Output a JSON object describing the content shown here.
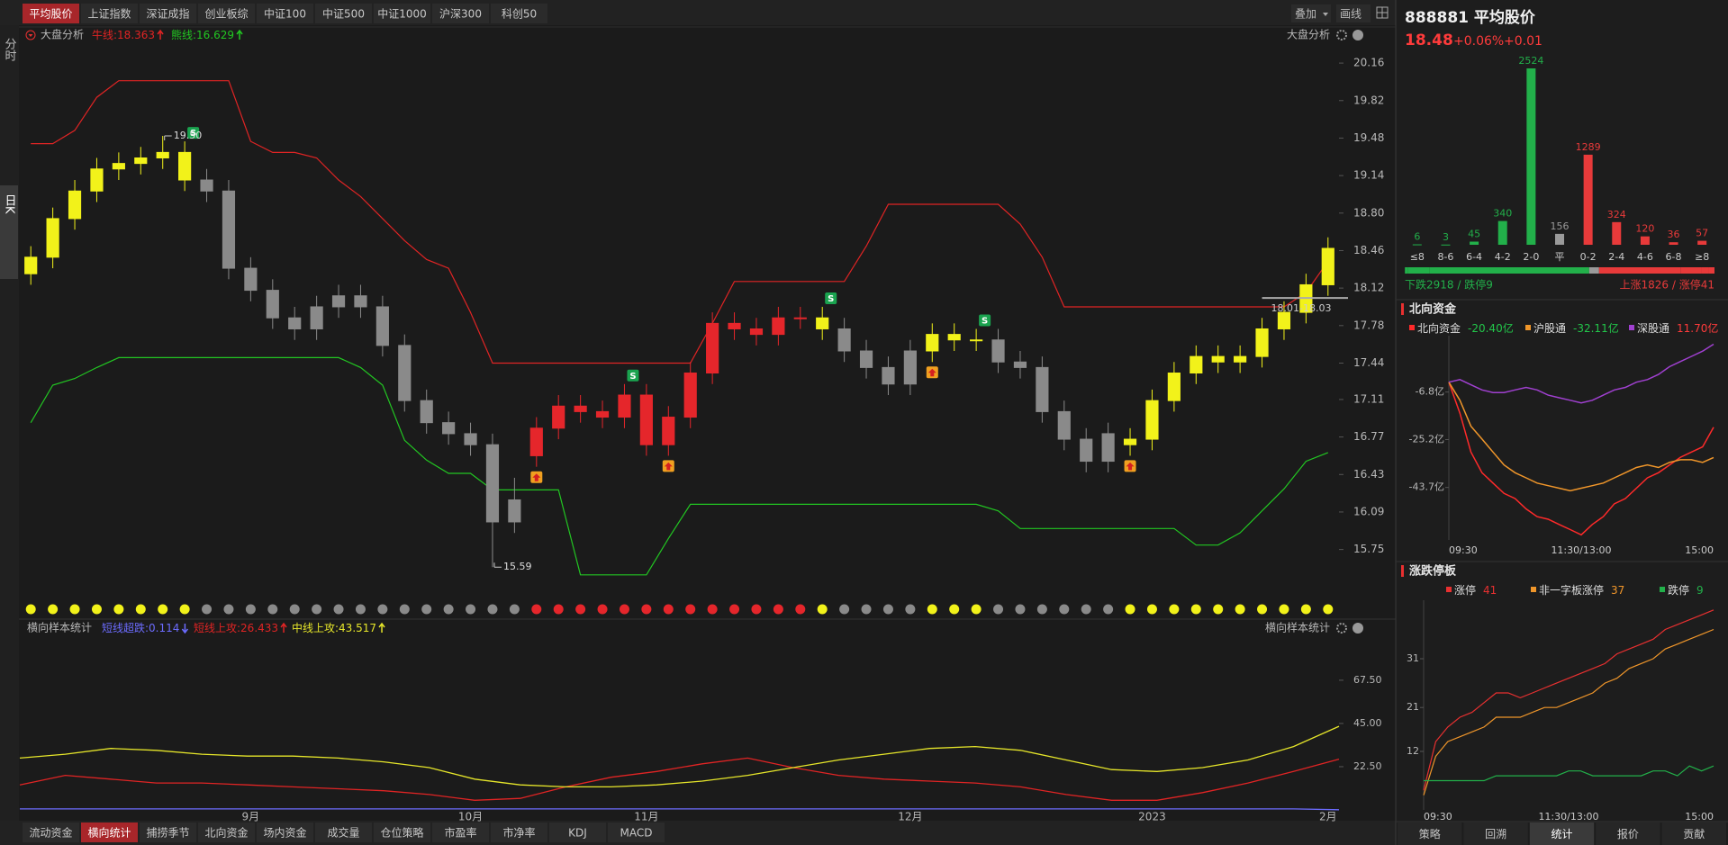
{
  "ui": {
    "top_tabs": [
      "平均股价",
      "上证指数",
      "深证成指",
      "创业板综",
      "中证100",
      "中证500",
      "中证1000",
      "沪深300",
      "科创50"
    ],
    "top_tabs_active": 0,
    "top_right": [
      "叠加",
      "画线"
    ],
    "side_tabs": [
      "分时",
      "日K"
    ],
    "side_tabs_active": 1,
    "main_title": "大盘分析",
    "main_title_right": "大盘分析",
    "sub_title": "横向样本统计",
    "sub_title_right": "横向样本统计",
    "bottom_tabs": [
      "流动资金",
      "横向统计",
      "捕捞季节",
      "北向资金",
      "场内资金",
      "成交量",
      "仓位策略",
      "市盈率",
      "市净率",
      "KDJ",
      "MACD"
    ],
    "bottom_tabs_active": 1,
    "right_tabs": [
      "策略",
      "回溯",
      "统计",
      "报价",
      "贡献"
    ],
    "right_tabs_active": 2,
    "quote_title": "888881 平均股价",
    "quote_price": 18.48,
    "quote_change_pct": "+0.06%",
    "quote_change": "+0.01",
    "breadth_down": "下跌2918 / 跌停9",
    "breadth_up": "上涨1826 / 涨停41",
    "north_title": "北向资金",
    "limit_title": "涨跌停板"
  },
  "chart_data": [
    {
      "type": "candlestick",
      "categories": [
        null,
        null,
        null,
        null,
        null,
        null,
        null,
        null,
        null,
        null,
        "9月",
        null,
        null,
        null,
        null,
        null,
        null,
        null,
        null,
        null,
        "10月",
        null,
        null,
        null,
        null,
        null,
        null,
        null,
        "11月",
        null,
        null,
        null,
        null,
        null,
        null,
        null,
        null,
        null,
        null,
        null,
        "12月",
        null,
        null,
        null,
        null,
        null,
        null,
        null,
        null,
        null,
        null,
        "2023",
        null,
        null,
        null,
        null,
        null,
        null,
        null,
        "2月"
      ],
      "open": [
        18.25,
        18.4,
        18.75,
        19.0,
        19.2,
        19.25,
        19.3,
        19.35,
        19.1,
        19.0,
        18.3,
        18.1,
        17.85,
        17.75,
        17.95,
        18.05,
        17.95,
        17.6,
        17.1,
        16.9,
        16.8,
        16.7,
        16.0,
        16.6,
        16.85,
        17.05,
        17.0,
        16.95,
        17.15,
        16.7,
        16.95,
        17.35,
        17.8,
        17.75,
        17.7,
        17.85,
        17.85,
        17.75,
        17.55,
        17.4,
        17.25,
        17.55,
        17.7,
        17.65,
        17.65,
        17.45,
        17.4,
        17.0,
        16.75,
        16.55,
        16.7,
        16.75,
        17.1,
        17.35,
        17.5,
        17.45,
        17.5,
        17.75,
        17.9,
        18.15
      ],
      "high": [
        18.5,
        18.85,
        19.1,
        19.3,
        19.35,
        19.4,
        19.5,
        19.45,
        19.2,
        19.1,
        18.4,
        18.2,
        17.95,
        18.05,
        18.15,
        18.15,
        18.05,
        17.7,
        17.2,
        17.0,
        16.9,
        16.8,
        16.4,
        16.95,
        17.15,
        17.15,
        17.1,
        17.25,
        17.25,
        17.05,
        17.45,
        17.9,
        17.9,
        17.85,
        17.95,
        17.95,
        17.95,
        17.85,
        17.65,
        17.5,
        17.65,
        17.8,
        17.8,
        17.75,
        17.75,
        17.55,
        17.5,
        17.1,
        16.85,
        16.9,
        16.85,
        17.2,
        17.45,
        17.6,
        17.6,
        17.6,
        17.85,
        18.0,
        18.25,
        18.58
      ],
      "low": [
        18.15,
        18.3,
        18.65,
        18.9,
        19.1,
        19.15,
        19.2,
        19.0,
        18.9,
        18.2,
        18.0,
        17.75,
        17.65,
        17.65,
        17.85,
        17.85,
        17.5,
        17.0,
        16.8,
        16.7,
        16.6,
        15.59,
        15.9,
        16.5,
        16.75,
        16.9,
        16.85,
        16.85,
        16.6,
        16.6,
        16.85,
        17.25,
        17.65,
        17.6,
        17.6,
        17.75,
        17.65,
        17.45,
        17.3,
        17.15,
        17.15,
        17.45,
        17.55,
        17.55,
        17.35,
        17.3,
        16.9,
        16.65,
        16.45,
        16.45,
        16.6,
        16.65,
        17.0,
        17.25,
        17.35,
        17.35,
        17.4,
        17.65,
        17.8,
        18.05
      ],
      "close": [
        18.4,
        18.75,
        19.0,
        19.2,
        19.25,
        19.3,
        19.35,
        19.1,
        19.0,
        18.3,
        18.1,
        17.85,
        17.75,
        17.95,
        18.05,
        17.95,
        17.6,
        17.1,
        16.9,
        16.8,
        16.7,
        16.0,
        16.2,
        16.85,
        17.05,
        17.0,
        16.95,
        17.15,
        16.7,
        16.95,
        17.35,
        17.8,
        17.75,
        17.7,
        17.85,
        17.85,
        17.75,
        17.55,
        17.4,
        17.25,
        17.55,
        17.7,
        17.65,
        17.65,
        17.45,
        17.4,
        17.0,
        16.75,
        16.55,
        16.8,
        16.75,
        17.1,
        17.35,
        17.5,
        17.45,
        17.5,
        17.75,
        17.9,
        18.15,
        18.48
      ],
      "colors": [
        "#f2f21a",
        "#f2f21a",
        "#f2f21a",
        "#f2f21a",
        "#f2f21a",
        "#f2f21a",
        "#f2f21a",
        "#f2f21a",
        "#8a8a8a",
        "#8a8a8a",
        "#8a8a8a",
        "#8a8a8a",
        "#8a8a8a",
        "#8a8a8a",
        "#8a8a8a",
        "#8a8a8a",
        "#8a8a8a",
        "#8a8a8a",
        "#8a8a8a",
        "#8a8a8a",
        "#8a8a8a",
        "#8a8a8a",
        "#8a8a8a",
        "#e5262b",
        "#e5262b",
        "#e5262b",
        "#e5262b",
        "#e5262b",
        "#e5262b",
        "#e5262b",
        "#e5262b",
        "#e5262b",
        "#e5262b",
        "#e5262b",
        "#e5262b",
        "#e5262b",
        "#f2f21a",
        "#8a8a8a",
        "#8a8a8a",
        "#8a8a8a",
        "#8a8a8a",
        "#f2f21a",
        "#f2f21a",
        "#f2f21a",
        "#8a8a8a",
        "#8a8a8a",
        "#8a8a8a",
        "#8a8a8a",
        "#8a8a8a",
        "#8a8a8a",
        "#f2f21a",
        "#f2f21a",
        "#f2f21a",
        "#f2f21a",
        "#f2f21a",
        "#f2f21a",
        "#f2f21a",
        "#f2f21a",
        "#f2f21a",
        "#f2f21a"
      ],
      "series": [
        {
          "name": "牛线:",
          "color": "#e02424",
          "values": [
            19.43,
            19.43,
            19.55,
            19.85,
            20.0,
            20.0,
            20.0,
            20.0,
            20.0,
            20.0,
            19.45,
            19.35,
            19.35,
            19.3,
            19.1,
            18.95,
            18.75,
            18.55,
            18.38,
            18.3,
            17.9,
            17.44,
            17.44,
            17.44,
            17.44,
            17.44,
            17.44,
            17.44,
            17.44,
            17.44,
            17.44,
            17.8,
            18.18,
            18.18,
            18.18,
            18.18,
            18.18,
            18.18,
            18.5,
            18.88,
            18.88,
            18.88,
            18.88,
            18.88,
            18.88,
            18.7,
            18.4,
            17.95,
            17.95,
            17.95,
            17.95,
            17.95,
            17.95,
            17.95,
            17.95,
            17.95,
            17.95,
            17.95,
            18.08,
            18.363
          ]
        },
        {
          "name": "熊线:",
          "color": "#22c622",
          "values": [
            16.9,
            17.24,
            17.3,
            17.4,
            17.49,
            17.49,
            17.49,
            17.49,
            17.49,
            17.49,
            17.49,
            17.49,
            17.49,
            17.49,
            17.49,
            17.4,
            17.24,
            16.74,
            16.56,
            16.44,
            16.44,
            16.29,
            16.29,
            16.29,
            16.29,
            15.52,
            15.52,
            15.52,
            15.52,
            15.85,
            16.16,
            16.16,
            16.16,
            16.16,
            16.16,
            16.16,
            16.16,
            16.16,
            16.16,
            16.16,
            16.16,
            16.16,
            16.16,
            16.16,
            16.1,
            15.94,
            15.94,
            15.94,
            15.94,
            15.94,
            15.94,
            15.94,
            15.94,
            15.79,
            15.79,
            15.9,
            16.1,
            16.3,
            16.55,
            16.629
          ]
        }
      ],
      "sell_signals": [
        7,
        27,
        36,
        43
      ],
      "buy_signals": [
        23,
        29,
        41,
        50
      ],
      "sell_label": "S",
      "annotations": [
        {
          "value": 19.5,
          "label": "19.50"
        },
        {
          "value": 15.59,
          "label": "15.59"
        }
      ],
      "range_label": {
        "value": 18.03,
        "label": "18.01-18.03"
      },
      "ylim": [
        15.29,
        20.43
      ],
      "yticks": [
        20.16,
        19.82,
        19.48,
        19.14,
        {
          "value": 18.8,
          "label": "18.80"
        },
        18.46,
        18.12,
        17.78,
        17.44,
        17.11,
        16.77,
        16.43,
        16.09,
        15.75
      ],
      "grid": false
    },
    {
      "type": "line",
      "series": [
        {
          "name": "短线超跌:",
          "color": "#6c6cff",
          "values": [
            0.5,
            0.5,
            0.5,
            0.5,
            0.5,
            0.5,
            0.5,
            0.5,
            0.5,
            0.5,
            0.5,
            0.5,
            0.5,
            0.5,
            0.5,
            0.5,
            0.5,
            0.5,
            0.5,
            0.5,
            0.5,
            0.5,
            0.5,
            0.5,
            0.5,
            0.5,
            0.5,
            0.5,
            0.5,
            0.114
          ]
        },
        {
          "name": "短线上攻:",
          "color": "#e02424",
          "values": [
            13,
            18,
            16,
            14,
            14,
            13,
            12,
            11,
            10,
            8,
            5,
            6,
            12,
            17,
            20,
            24,
            27,
            22,
            18,
            16,
            15,
            14,
            12,
            8,
            5,
            5,
            9,
            14,
            20,
            26.433
          ]
        },
        {
          "name": "中线上攻:",
          "color": "#e6e62a",
          "values": [
            27,
            29,
            32,
            31,
            29,
            28,
            28,
            27,
            25,
            22,
            16,
            13,
            12,
            12,
            13,
            15,
            18,
            22,
            26,
            29,
            32,
            33,
            31,
            26,
            21,
            20,
            22,
            26,
            33,
            43.517
          ]
        }
      ],
      "ylim": [
        0,
        89
      ],
      "yticks": [
        {
          "value": 22.5,
          "label": "22.50"
        },
        {
          "value": 45,
          "label": "45.00"
        },
        {
          "value": 67.5,
          "label": "67.50"
        }
      ],
      "grid": false
    },
    {
      "type": "bar",
      "categories": [
        "≤8",
        "8-6",
        "6-4",
        "4-2",
        "2-0",
        "平",
        "0-2",
        "2-4",
        "4-6",
        "6-8",
        "≥8"
      ],
      "values": [
        6,
        3,
        45,
        340,
        2524,
        156,
        1289,
        324,
        120,
        36,
        57
      ],
      "colors": [
        "#22b04a",
        "#22b04a",
        "#22b04a",
        "#22b04a",
        "#22b04a",
        "#9a9a9a",
        "#e83a3a",
        "#e83a3a",
        "#e83a3a",
        "#e83a3a",
        "#e83a3a"
      ]
    },
    {
      "type": "line",
      "categories": [
        "09:30",
        null,
        null,
        null,
        null,
        null,
        null,
        null,
        null,
        null,
        null,
        null,
        "11:30/13:00",
        null,
        null,
        null,
        null,
        null,
        null,
        null,
        null,
        null,
        null,
        null,
        "15:00"
      ],
      "series": [
        {
          "name": "北向资金",
          "color": "#ff2a2a",
          "latest_label": "-20.40亿",
          "values": [
            -3,
            -15,
            -30,
            -38,
            -42,
            -46,
            -48,
            -52,
            -55,
            -56,
            -58,
            -60,
            -62,
            -58,
            -55,
            -50,
            -48,
            -44,
            -40,
            -38,
            -35,
            -32,
            -30,
            -28,
            -20.4
          ]
        },
        {
          "name": "沪股通",
          "color": "#f0962a",
          "latest_label": "-32.11亿",
          "values": [
            -3,
            -10,
            -20,
            -25,
            -30,
            -35,
            -38,
            -40,
            -42,
            -43,
            -44,
            -45,
            -44,
            -43,
            -42,
            -40,
            -38,
            -36,
            -35,
            -36,
            -34,
            -33,
            -33,
            -34,
            -32.11
          ]
        },
        {
          "name": "深股通",
          "color": "#a040d0",
          "latest_label": "11.70亿",
          "values": [
            -3,
            -2,
            -4,
            -6,
            -7,
            -7,
            -6,
            -5,
            -6,
            -8,
            -9,
            -10,
            -11,
            -10,
            -8,
            -6,
            -5,
            -3,
            -2,
            0,
            3,
            5,
            7,
            9,
            11.7
          ]
        }
      ],
      "ylim": [
        -64,
        15
      ],
      "yticks": [
        {
          "value": -6.8,
          "label": "-6.8亿"
        },
        {
          "value": -25.2,
          "label": "-25.2亿"
        },
        {
          "value": -43.7,
          "label": "-43.7亿"
        }
      ],
      "grid": false
    },
    {
      "type": "line",
      "categories": [
        "09:30",
        null,
        null,
        null,
        null,
        null,
        null,
        null,
        null,
        null,
        null,
        null,
        "11:30/13:00",
        null,
        null,
        null,
        null,
        null,
        null,
        null,
        null,
        null,
        null,
        null,
        "15:00"
      ],
      "series": [
        {
          "name": "涨停",
          "color": "#e83030",
          "values": [
            4,
            14,
            17,
            19,
            20,
            22,
            24,
            24,
            23,
            24,
            25,
            26,
            27,
            28,
            29,
            30,
            32,
            33,
            34,
            35,
            37,
            38,
            39,
            40,
            41
          ]
        },
        {
          "name": "非一字板涨停",
          "color": "#f0962a",
          "values": [
            3,
            11,
            14,
            15,
            16,
            17,
            19,
            19,
            19,
            20,
            21,
            21,
            22,
            23,
            24,
            26,
            27,
            29,
            30,
            31,
            33,
            34,
            35,
            36,
            37
          ]
        },
        {
          "name": "跌停",
          "color": "#22b04a",
          "values": [
            6,
            6,
            6,
            6,
            6,
            6,
            7,
            7,
            7,
            7,
            7,
            7,
            8,
            8,
            7,
            7,
            7,
            7,
            7,
            8,
            8,
            7,
            9,
            8,
            9
          ]
        }
      ],
      "ylim": [
        0,
        43
      ],
      "yticks": [
        12,
        21,
        31
      ],
      "grid": false
    }
  ]
}
